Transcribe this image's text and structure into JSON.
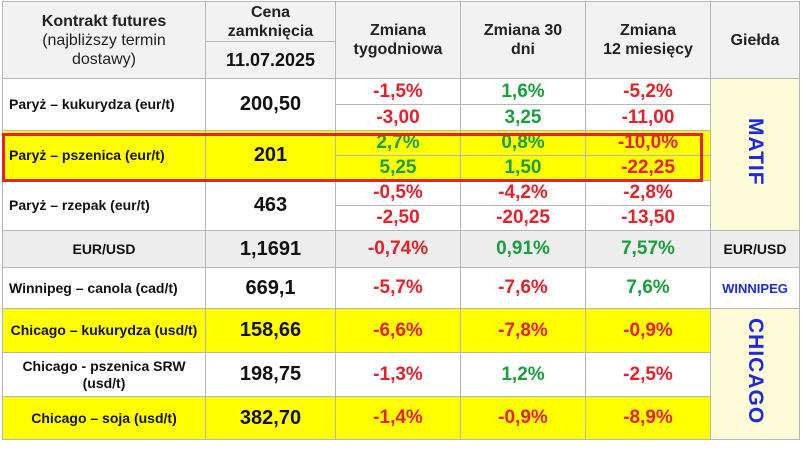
{
  "header": {
    "contract_line1": "Kontrakt futures",
    "contract_line2": "(najbliższy termin",
    "contract_line3": "dostawy)",
    "price_line1": "Cena",
    "price_line2": "zamknięcia",
    "date": "11.07.2025",
    "weekly_line1": "Zmiana",
    "weekly_line2": "tygodniowa",
    "d30_line1": "Zmiana 30",
    "d30_line2": "dni",
    "m12_line1": "Zmiana",
    "m12_line2": "12 miesięcy",
    "exchange": "Giełda"
  },
  "exchanges": {
    "matif": "MATIF",
    "eurusd": "EUR/USD",
    "winnipeg": "WINNIPEG",
    "chicago": "CHICAGO"
  },
  "rows": [
    {
      "name": "Paryż – kukurydza  (eur/t)",
      "price": "200,50",
      "weekly_pct": "-1,5%",
      "weekly_abs": "-3,00",
      "d30_pct": "1,6%",
      "d30_abs": "3,25",
      "m12_pct": "-5,2%",
      "m12_abs": "-11,00"
    },
    {
      "name": "Paryż – pszenica (eur/t)",
      "price": "201",
      "weekly_pct": "2,7%",
      "weekly_abs": "5,25",
      "d30_pct": "0,8%",
      "d30_abs": "1,50",
      "m12_pct": "-10,0%",
      "m12_abs": "-22,25"
    },
    {
      "name": "Paryż – rzepak (eur/t)",
      "price": "463",
      "weekly_pct": "-0,5%",
      "weekly_abs": "-2,50",
      "d30_pct": "-4,2%",
      "d30_abs": "-20,25",
      "m12_pct": "-2,8%",
      "m12_abs": "-13,50"
    },
    {
      "name": "EUR/USD",
      "price": "1,1691",
      "weekly": "-0,74%",
      "d30": "0,91%",
      "m12": "7,57%"
    },
    {
      "name": "Winnipeg – canola (cad/t)",
      "price": "669,1",
      "weekly": "-5,7%",
      "d30": "-7,6%",
      "m12": "7,6%"
    },
    {
      "name": "Chicago – kukurydza (usd/t)",
      "price": "158,66",
      "weekly": "-6,6%",
      "d30": "-7,8%",
      "m12": "-0,9%"
    },
    {
      "name": "Chicago - pszenica SRW (usd/t)",
      "price": "198,75",
      "weekly": "-1,3%",
      "d30": "1,2%",
      "m12": "-2,5%"
    },
    {
      "name": "Chicago – soja (usd/t)",
      "price": "382,70",
      "weekly": "-1,4%",
      "d30": "-0,9%",
      "m12": "-8,9%"
    }
  ],
  "colors": {
    "negative": "#e8202a",
    "positive": "#1aa03a",
    "highlight_row": "#ffff00",
    "exchange_text": "#1d2ae0",
    "highlight_border": "#e8202a"
  }
}
